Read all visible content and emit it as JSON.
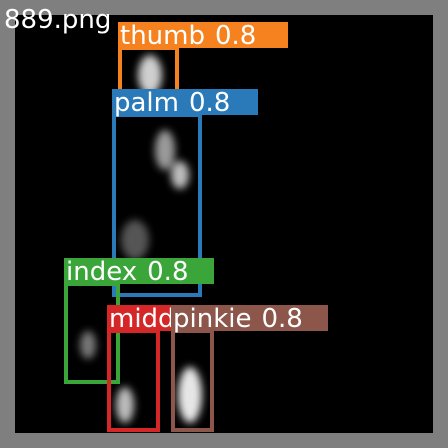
{
  "image": {
    "filename": "889.png",
    "detections": [
      {
        "label": "thumb",
        "score": 0.8
      },
      {
        "label": "palm",
        "score": 0.8
      },
      {
        "label": "index",
        "score": 0.8
      },
      {
        "label": "middle",
        "score": 0.8
      },
      {
        "label": "pinkie",
        "score": 0.8
      }
    ]
  }
}
